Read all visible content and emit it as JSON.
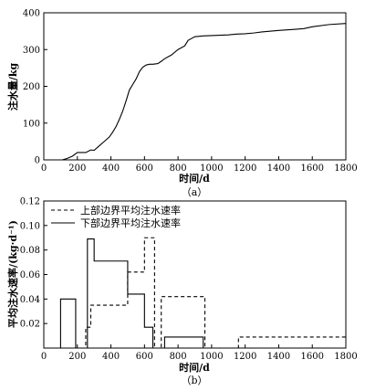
{
  "chart_data": [
    {
      "type": "line",
      "caption": "（a）",
      "xlabel": "时间/d",
      "ylabel": "注水量/kg",
      "xlim": [
        0,
        1800
      ],
      "ylim": [
        0,
        400
      ],
      "xticks": [
        0,
        200,
        400,
        600,
        800,
        1000,
        1200,
        1400,
        1600,
        1800
      ],
      "yticks": [
        0,
        100,
        200,
        300,
        400
      ],
      "grid": false,
      "series": [
        {
          "x": [
            110,
            140,
            170,
            200,
            230,
            250,
            280,
            300,
            330,
            360,
            390,
            410,
            430,
            450,
            470,
            490,
            510,
            530,
            550,
            570,
            590,
            610,
            630,
            650,
            680,
            700,
            720,
            760,
            800,
            840,
            860,
            880,
            900,
            950,
            1000,
            1100,
            1150,
            1200,
            1250,
            1300,
            1400,
            1500,
            1550,
            1600,
            1700,
            1800
          ],
          "y": [
            0,
            4,
            10,
            20,
            20,
            20,
            27,
            26,
            38,
            50,
            62,
            75,
            90,
            110,
            132,
            160,
            190,
            205,
            220,
            240,
            252,
            258,
            260,
            260,
            262,
            268,
            275,
            285,
            300,
            310,
            325,
            330,
            335,
            337,
            338,
            340,
            342,
            343,
            345,
            348,
            352,
            355,
            357,
            362,
            368,
            371
          ]
        }
      ]
    },
    {
      "type": "line",
      "caption": "（b）",
      "xlabel": "时间/d",
      "ylabel": "平均注水速率/(kg·d⁻¹)",
      "xlim": [
        0,
        1800
      ],
      "ylim": [
        0,
        0.12
      ],
      "xticks": [
        0,
        200,
        400,
        600,
        800,
        1000,
        1200,
        1400,
        1600,
        1800
      ],
      "yticks": [
        0.02,
        0.04,
        0.06,
        0.08,
        0.1,
        0.12
      ],
      "ytick_labels": [
        "0.02",
        "0.04",
        "0.06",
        "0.08",
        "0.10",
        "0.12"
      ],
      "legend_position": "top-left",
      "series": [
        {
          "name": "上部边界平均注水速率",
          "style": "dashed",
          "x": [
            0,
            250,
            250,
            280,
            280,
            500,
            500,
            600,
            600,
            660,
            660,
            700,
            700,
            960,
            960,
            1160,
            1160,
            1800
          ],
          "y": [
            0,
            0,
            0.017,
            0.017,
            0.035,
            0.035,
            0.062,
            0.062,
            0.09,
            0.09,
            0,
            0,
            0.042,
            0.042,
            0,
            0,
            0.009,
            0.009
          ]
        },
        {
          "name": "下部边界平均注水速率",
          "style": "solid",
          "x": [
            0,
            100,
            100,
            190,
            190,
            260,
            260,
            300,
            300,
            500,
            500,
            600,
            600,
            650,
            650,
            720,
            720,
            950,
            950,
            1800
          ],
          "y": [
            0,
            0,
            0.04,
            0.04,
            0,
            0,
            0.089,
            0.089,
            0.071,
            0.071,
            0.044,
            0.044,
            0.017,
            0.017,
            0,
            0,
            0.009,
            0.009,
            0,
            0
          ]
        }
      ]
    }
  ]
}
